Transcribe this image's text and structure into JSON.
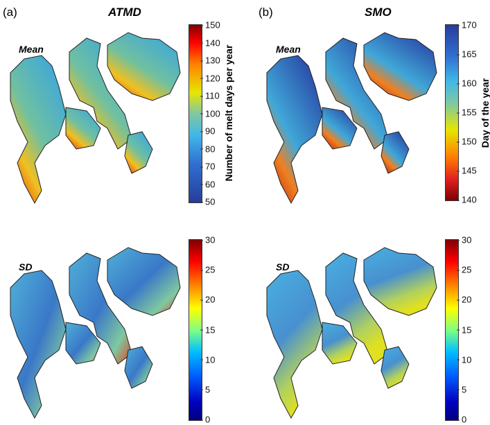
{
  "panels": {
    "a": {
      "letter": "(a)",
      "title": "ATMD"
    },
    "b": {
      "letter": "(b)",
      "title": "SMO"
    }
  },
  "row_labels": {
    "mean": "Mean",
    "sd": "SD"
  },
  "colorbars": {
    "atmd_mean": {
      "label": "Number of melt days per year",
      "range": [
        50,
        150
      ],
      "ticks": [
        "150",
        "140",
        "130",
        "120",
        "110",
        "100",
        "90",
        "80",
        "70",
        "60",
        "50"
      ]
    },
    "smo_mean": {
      "label": "Day of the year",
      "range": [
        140,
        170
      ],
      "ticks": [
        "170",
        "165",
        "160",
        "155",
        "150",
        "145",
        "140"
      ]
    },
    "atmd_sd": {
      "range": [
        0,
        30
      ],
      "ticks": [
        "30",
        "25",
        "20",
        "15",
        "10",
        "5",
        "0"
      ]
    },
    "smo_sd": {
      "range": [
        0,
        30
      ],
      "ticks": [
        "30",
        "25",
        "20",
        "15",
        "10",
        "5",
        "0"
      ]
    }
  },
  "colormap": "jet"
}
